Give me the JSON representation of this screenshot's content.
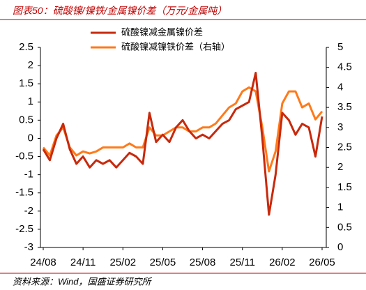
{
  "chart_data": {
    "type": "line",
    "title": "图表50：硫酸镍/镍铁/金属镍价差（万元/金属吨）",
    "source": "资料来源：Wind，国盛证券研究所",
    "categories": [
      "24/08",
      null,
      null,
      null,
      null,
      null,
      "24/11",
      null,
      null,
      null,
      null,
      null,
      "25/02",
      null,
      null,
      null,
      null,
      null,
      "25/05",
      null,
      null,
      null,
      null,
      null,
      "25/08",
      null,
      null,
      null,
      null,
      null,
      "25/11",
      null,
      null,
      null,
      null,
      null,
      "26/02",
      null,
      null,
      null,
      null,
      null,
      "26/05"
    ],
    "series": [
      {
        "name": "硫酸镍减金属镍价差",
        "color": "#c8290c",
        "values": [
          -0.3,
          -0.6,
          0.0,
          0.4,
          -0.3,
          -0.7,
          -0.5,
          -0.8,
          -0.6,
          -0.7,
          -0.6,
          -0.8,
          -0.6,
          -0.4,
          -0.5,
          -0.7,
          0.7,
          -0.1,
          0.1,
          -0.1,
          0.3,
          0.5,
          0.2,
          0.0,
          0.1,
          0.0,
          0.2,
          0.4,
          0.5,
          0.8,
          0.9,
          1.0,
          1.8,
          0.0,
          -2.1,
          -1.0,
          0.7,
          0.5,
          0.1,
          0.4,
          0.3,
          -0.5,
          0.6
        ]
      },
      {
        "name": "硫酸镍减镍铁价差（右轴）",
        "color": "#ff7a1a",
        "axis": "y2",
        "values": [
          2.5,
          2.3,
          2.8,
          3.0,
          2.5,
          2.3,
          2.4,
          2.35,
          2.4,
          2.5,
          2.5,
          2.5,
          2.5,
          2.6,
          2.5,
          2.5,
          3.0,
          2.8,
          2.8,
          2.9,
          3.0,
          3.0,
          2.9,
          2.9,
          3.0,
          3.0,
          3.1,
          3.3,
          3.5,
          3.6,
          3.9,
          4.0,
          3.9,
          3.0,
          1.9,
          2.4,
          3.6,
          3.9,
          3.9,
          3.5,
          3.6,
          3.2,
          3.4
        ]
      }
    ],
    "ylim": [
      -3,
      2.5
    ],
    "yticks": [
      -3,
      -2.5,
      -2,
      -1.5,
      -1,
      -0.5,
      0,
      0.5,
      1,
      1.5,
      2,
      2.5
    ],
    "y2lim": [
      0,
      5
    ],
    "y2ticks": [
      0,
      0.5,
      1,
      1.5,
      2,
      2.5,
      3,
      3.5,
      4,
      4.5,
      5
    ]
  }
}
